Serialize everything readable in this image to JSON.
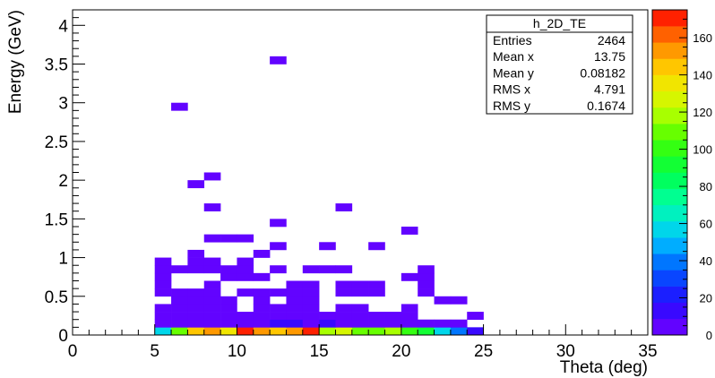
{
  "chart_data": {
    "type": "heatmap",
    "title": "",
    "xlabel": "Theta (deg)",
    "ylabel": "Energy (GeV)",
    "xlim": [
      0,
      35
    ],
    "ylim": [
      0,
      4.2
    ],
    "x_bin_width": 1,
    "y_bin_width": 0.1,
    "x_ticks": [
      "0",
      "5",
      "10",
      "15",
      "20",
      "25",
      "30",
      "35"
    ],
    "y_ticks": [
      "0",
      "0.5",
      "1",
      "1.5",
      "2",
      "2.5",
      "3",
      "3.5",
      "4"
    ],
    "z_range": [
      0,
      175
    ],
    "z_ticks": [
      "0",
      "20",
      "40",
      "60",
      "80",
      "100",
      "120",
      "140",
      "160"
    ],
    "stats": {
      "name": "h_2D_TE",
      "rows": [
        {
          "label": "Entries",
          "value": "2464"
        },
        {
          "label": "Mean x",
          "value": "13.75"
        },
        {
          "label": "Mean y",
          "value": "0.08182"
        },
        {
          "label": "RMS x",
          "value": "4.791"
        },
        {
          "label": "RMS y",
          "value": "0.1674"
        }
      ]
    },
    "bins": [
      {
        "x": 5,
        "y": 0,
        "z": 60
      },
      {
        "x": 6,
        "y": 0,
        "z": 110
      },
      {
        "x": 7,
        "y": 0,
        "z": 140
      },
      {
        "x": 8,
        "y": 0,
        "z": 150
      },
      {
        "x": 9,
        "y": 0,
        "z": 135
      },
      {
        "x": 10,
        "y": 0,
        "z": 170
      },
      {
        "x": 11,
        "y": 0,
        "z": 150
      },
      {
        "x": 12,
        "y": 0,
        "z": 140
      },
      {
        "x": 13,
        "y": 0,
        "z": 150
      },
      {
        "x": 14,
        "y": 0,
        "z": 170
      },
      {
        "x": 15,
        "y": 0,
        "z": 120
      },
      {
        "x": 16,
        "y": 0,
        "z": 130
      },
      {
        "x": 17,
        "y": 0,
        "z": 110
      },
      {
        "x": 18,
        "y": 0,
        "z": 110
      },
      {
        "x": 19,
        "y": 0,
        "z": 115
      },
      {
        "x": 20,
        "y": 0,
        "z": 100
      },
      {
        "x": 21,
        "y": 0,
        "z": 90
      },
      {
        "x": 22,
        "y": 0,
        "z": 60
      },
      {
        "x": 23,
        "y": 0,
        "z": 40
      },
      {
        "x": 24,
        "y": 0,
        "z": 15
      },
      {
        "x": 5,
        "y": 0.1,
        "z": 2
      },
      {
        "x": 6,
        "y": 0.1,
        "z": 2
      },
      {
        "x": 7,
        "y": 0.1,
        "z": 2
      },
      {
        "x": 8,
        "y": 0.1,
        "z": 2
      },
      {
        "x": 9,
        "y": 0.1,
        "z": 2
      },
      {
        "x": 10,
        "y": 0.1,
        "z": 2
      },
      {
        "x": 11,
        "y": 0.1,
        "z": 2
      },
      {
        "x": 12,
        "y": 0.1,
        "z": 12
      },
      {
        "x": 13,
        "y": 0.1,
        "z": 12
      },
      {
        "x": 14,
        "y": 0.1,
        "z": 2
      },
      {
        "x": 15,
        "y": 0.1,
        "z": 12
      },
      {
        "x": 16,
        "y": 0.1,
        "z": 2
      },
      {
        "x": 17,
        "y": 0.1,
        "z": 2
      },
      {
        "x": 18,
        "y": 0.1,
        "z": 2
      },
      {
        "x": 19,
        "y": 0.1,
        "z": 2
      },
      {
        "x": 20,
        "y": 0.1,
        "z": 2
      },
      {
        "x": 21,
        "y": 0.1,
        "z": 2
      },
      {
        "x": 22,
        "y": 0.1,
        "z": 2
      },
      {
        "x": 23,
        "y": 0.1,
        "z": 2
      },
      {
        "x": 5,
        "y": 0.2,
        "z": 2
      },
      {
        "x": 6,
        "y": 0.2,
        "z": 2
      },
      {
        "x": 7,
        "y": 0.2,
        "z": 2
      },
      {
        "x": 8,
        "y": 0.2,
        "z": 2
      },
      {
        "x": 9,
        "y": 0.2,
        "z": 2
      },
      {
        "x": 10,
        "y": 0.2,
        "z": 2
      },
      {
        "x": 11,
        "y": 0.2,
        "z": 2
      },
      {
        "x": 12,
        "y": 0.2,
        "z": 2
      },
      {
        "x": 13,
        "y": 0.2,
        "z": 2
      },
      {
        "x": 14,
        "y": 0.2,
        "z": 2
      },
      {
        "x": 15,
        "y": 0.2,
        "z": 2
      },
      {
        "x": 16,
        "y": 0.2,
        "z": 2
      },
      {
        "x": 17,
        "y": 0.2,
        "z": 2
      },
      {
        "x": 18,
        "y": 0.2,
        "z": 2
      },
      {
        "x": 19,
        "y": 0.2,
        "z": 2
      },
      {
        "x": 20,
        "y": 0.2,
        "z": 2
      },
      {
        "x": 24,
        "y": 0.2,
        "z": 2
      },
      {
        "x": 5,
        "y": 0.3,
        "z": 2
      },
      {
        "x": 6,
        "y": 0.3,
        "z": 2
      },
      {
        "x": 7,
        "y": 0.3,
        "z": 2
      },
      {
        "x": 8,
        "y": 0.3,
        "z": 2
      },
      {
        "x": 9,
        "y": 0.3,
        "z": 2
      },
      {
        "x": 11,
        "y": 0.3,
        "z": 2
      },
      {
        "x": 12,
        "y": 0.3,
        "z": 2
      },
      {
        "x": 13,
        "y": 0.3,
        "z": 2
      },
      {
        "x": 14,
        "y": 0.3,
        "z": 2
      },
      {
        "x": 16,
        "y": 0.3,
        "z": 2
      },
      {
        "x": 17,
        "y": 0.3,
        "z": 2
      },
      {
        "x": 20,
        "y": 0.3,
        "z": 2
      },
      {
        "x": 6,
        "y": 0.4,
        "z": 2
      },
      {
        "x": 7,
        "y": 0.4,
        "z": 2
      },
      {
        "x": 8,
        "y": 0.4,
        "z": 2
      },
      {
        "x": 9,
        "y": 0.4,
        "z": 2
      },
      {
        "x": 11,
        "y": 0.4,
        "z": 2
      },
      {
        "x": 13,
        "y": 0.4,
        "z": 2
      },
      {
        "x": 14,
        "y": 0.4,
        "z": 2
      },
      {
        "x": 22,
        "y": 0.4,
        "z": 2
      },
      {
        "x": 23,
        "y": 0.4,
        "z": 2
      },
      {
        "x": 5,
        "y": 0.5,
        "z": 2
      },
      {
        "x": 6,
        "y": 0.5,
        "z": 2
      },
      {
        "x": 7,
        "y": 0.5,
        "z": 2
      },
      {
        "x": 8,
        "y": 0.5,
        "z": 2
      },
      {
        "x": 10,
        "y": 0.5,
        "z": 2
      },
      {
        "x": 11,
        "y": 0.5,
        "z": 2
      },
      {
        "x": 12,
        "y": 0.5,
        "z": 2
      },
      {
        "x": 13,
        "y": 0.5,
        "z": 2
      },
      {
        "x": 14,
        "y": 0.5,
        "z": 2
      },
      {
        "x": 16,
        "y": 0.5,
        "z": 2
      },
      {
        "x": 17,
        "y": 0.5,
        "z": 2
      },
      {
        "x": 18,
        "y": 0.5,
        "z": 2
      },
      {
        "x": 21,
        "y": 0.5,
        "z": 2
      },
      {
        "x": 5,
        "y": 0.6,
        "z": 2
      },
      {
        "x": 8,
        "y": 0.6,
        "z": 2
      },
      {
        "x": 13,
        "y": 0.6,
        "z": 2
      },
      {
        "x": 14,
        "y": 0.6,
        "z": 2
      },
      {
        "x": 16,
        "y": 0.6,
        "z": 2
      },
      {
        "x": 17,
        "y": 0.6,
        "z": 2
      },
      {
        "x": 18,
        "y": 0.6,
        "z": 2
      },
      {
        "x": 21,
        "y": 0.6,
        "z": 2
      },
      {
        "x": 5,
        "y": 0.7,
        "z": 2
      },
      {
        "x": 9,
        "y": 0.7,
        "z": 2
      },
      {
        "x": 10,
        "y": 0.7,
        "z": 2
      },
      {
        "x": 11,
        "y": 0.7,
        "z": 2
      },
      {
        "x": 20,
        "y": 0.7,
        "z": 2
      },
      {
        "x": 21,
        "y": 0.7,
        "z": 2
      },
      {
        "x": 5,
        "y": 0.8,
        "z": 2
      },
      {
        "x": 6,
        "y": 0.8,
        "z": 2
      },
      {
        "x": 7,
        "y": 0.8,
        "z": 2
      },
      {
        "x": 8,
        "y": 0.8,
        "z": 2
      },
      {
        "x": 9,
        "y": 0.8,
        "z": 2
      },
      {
        "x": 10,
        "y": 0.8,
        "z": 2
      },
      {
        "x": 12,
        "y": 0.8,
        "z": 2
      },
      {
        "x": 14,
        "y": 0.8,
        "z": 2
      },
      {
        "x": 15,
        "y": 0.8,
        "z": 2
      },
      {
        "x": 16,
        "y": 0.8,
        "z": 2
      },
      {
        "x": 21,
        "y": 0.8,
        "z": 2
      },
      {
        "x": 5,
        "y": 0.9,
        "z": 2
      },
      {
        "x": 7,
        "y": 0.9,
        "z": 2
      },
      {
        "x": 8,
        "y": 0.9,
        "z": 2
      },
      {
        "x": 10,
        "y": 0.9,
        "z": 2
      },
      {
        "x": 7,
        "y": 1.0,
        "z": 2
      },
      {
        "x": 11,
        "y": 1.0,
        "z": 2
      },
      {
        "x": 12,
        "y": 1.1,
        "z": 2
      },
      {
        "x": 15,
        "y": 1.1,
        "z": 2
      },
      {
        "x": 18,
        "y": 1.1,
        "z": 2
      },
      {
        "x": 8,
        "y": 1.2,
        "z": 2
      },
      {
        "x": 9,
        "y": 1.2,
        "z": 2
      },
      {
        "x": 10,
        "y": 1.2,
        "z": 2
      },
      {
        "x": 20,
        "y": 1.3,
        "z": 2
      },
      {
        "x": 12,
        "y": 1.4,
        "z": 2
      },
      {
        "x": 8,
        "y": 1.6,
        "z": 2
      },
      {
        "x": 16,
        "y": 1.6,
        "z": 2
      },
      {
        "x": 7,
        "y": 1.9,
        "z": 2
      },
      {
        "x": 8,
        "y": 2.0,
        "z": 2
      },
      {
        "x": 6,
        "y": 2.9,
        "z": 2
      },
      {
        "x": 12,
        "y": 3.5,
        "z": 2
      }
    ]
  }
}
